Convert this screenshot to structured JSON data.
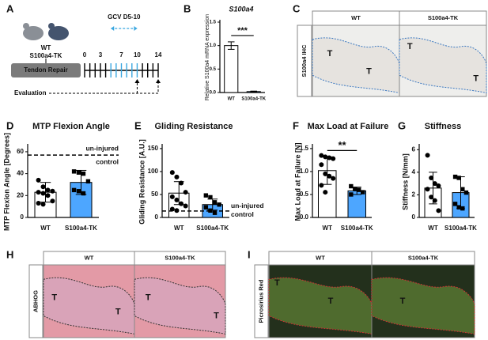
{
  "chart_data": [
    {
      "panel_label": "B",
      "type": "bar",
      "title": "S100a4",
      "ylabel": "Relative S100a4 mRNA expression",
      "categories": [
        "WT",
        "S100a4-TK"
      ],
      "values": [
        1.0,
        0.02
      ],
      "errors": [
        0.08,
        0.01
      ],
      "colors": [
        "#ffffff",
        "#4da6ff"
      ],
      "ylim": [
        0,
        1.5
      ],
      "yticks": [
        {
          "value": 0,
          "label": "0.0"
        },
        0.5,
        {
          "value": 1,
          "label": "1.0"
        },
        1.5
      ],
      "annotation": "***"
    },
    {
      "panel_label": "D",
      "type": "bar",
      "title": "MTP Flexion Angle",
      "ylabel": "MTP Flexion Angle [Degrees]",
      "categories": [
        "WT",
        "S100a4-TK"
      ],
      "values": [
        23,
        32
      ],
      "errors": [
        9,
        11
      ],
      "colors": [
        "#ffffff",
        "#4da6ff"
      ],
      "ylim": [
        0,
        65
      ],
      "yticks": [
        0,
        20,
        40,
        60
      ],
      "points": [
        [
          34,
          28,
          25,
          24,
          23,
          22,
          20,
          15,
          13,
          12
        ],
        [
          42,
          41,
          40,
          33,
          25,
          24,
          22
        ]
      ],
      "reference": {
        "value": 57,
        "label_lines": [
          "un-injured",
          "control"
        ]
      }
    },
    {
      "panel_label": "E",
      "type": "bar",
      "title": "Gliding Resistance",
      "ylabel": "Gliding Resistance [A.U.]",
      "categories": [
        "WT",
        "S100a4-TK"
      ],
      "values": [
        53,
        28
      ],
      "errors": [
        25,
        12
      ],
      "colors": [
        "#ffffff",
        "#4da6ff"
      ],
      "ylim": [
        0,
        155
      ],
      "yticks": [
        0,
        50,
        100,
        150
      ],
      "points": [
        [
          98,
          88,
          75,
          55,
          45,
          38,
          30,
          25,
          18,
          15
        ],
        [
          48,
          44,
          33,
          28,
          22,
          15,
          10
        ]
      ],
      "reference": {
        "value": 14,
        "label_lines": [
          "un-injured",
          "control"
        ]
      }
    },
    {
      "panel_label": "F",
      "type": "bar",
      "title": "Max Load at Failure",
      "ylabel": "Max Load at Failure [N]",
      "categories": [
        "WT",
        "S100a4-TK"
      ],
      "values": [
        1.02,
        0.58
      ],
      "errors": [
        0.3,
        0.08
      ],
      "colors": [
        "#ffffff",
        "#4da6ff"
      ],
      "ylim": [
        0,
        1.55
      ],
      "yticks": [
        {
          "value": 0,
          "label": "0.0"
        },
        0.5,
        {
          "value": 1,
          "label": "1.0"
        },
        1.5
      ],
      "points": [
        [
          1.35,
          1.32,
          1.3,
          1.28,
          1.15,
          0.95,
          0.9,
          0.85,
          0.7,
          0.55
        ],
        [
          0.68,
          0.62,
          0.6,
          0.55,
          0.5
        ]
      ],
      "annotation": "**"
    },
    {
      "panel_label": "G",
      "type": "bar",
      "title": "Stiffness",
      "ylabel": "Stiffness [N/mm]",
      "categories": [
        "WT",
        "S100a4-TK"
      ],
      "values": [
        2.6,
        2.2
      ],
      "errors": [
        1.4,
        1.4
      ],
      "colors": [
        "#ffffff",
        "#4da6ff"
      ],
      "ylim": [
        0,
        6.3
      ],
      "yticks": [
        0,
        2,
        4,
        6
      ],
      "points": [
        [
          5.5,
          3.5,
          3.0,
          2.8,
          2.5,
          1.8,
          1.5,
          0.6
        ],
        [
          3.6,
          3.5,
          2.5,
          2.2,
          1.2,
          0.9,
          0.8
        ]
      ]
    }
  ],
  "panels": {
    "A": {
      "label": "A",
      "wt": "WT",
      "tk": "S100a4-TK",
      "surgery": "Tendon Repair",
      "drug": "GCV D5-10",
      "timeline": [
        0,
        3,
        7,
        10,
        14
      ],
      "evaluation": "Evaluation"
    },
    "C": {
      "label": "C",
      "stain": "S100a4 IHC",
      "columns": [
        "WT",
        "S100a4-TK"
      ],
      "t_labels": [
        [
          "T",
          "T"
        ],
        [
          "T",
          "T"
        ]
      ]
    },
    "H": {
      "label": "H",
      "stain": "ABHOG",
      "columns": [
        "WT",
        "S100a4-TK"
      ],
      "t_labels": [
        [
          "T",
          "T"
        ],
        [
          "T",
          "T"
        ]
      ]
    },
    "I": {
      "label": "I",
      "stain": "Picrosirius Red",
      "columns": [
        "WT",
        "S100a4-TK"
      ],
      "t_labels": [
        [
          "T",
          "T"
        ],
        [
          "T"
        ]
      ]
    }
  }
}
